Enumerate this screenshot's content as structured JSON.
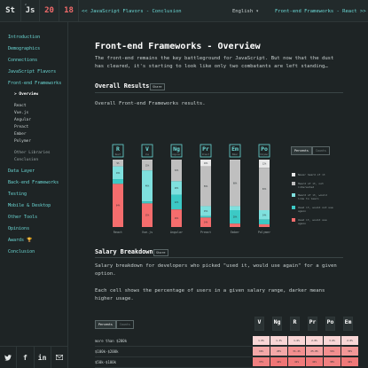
{
  "topbar": {
    "logo": [
      "St",
      "Js",
      "20",
      "18"
    ],
    "logo_js_sup": "2",
    "prev_link": "<< JavaScript Flavors - Conclusion",
    "language": "English",
    "next_link": "Front-end Frameworks - React >>"
  },
  "sidebar": {
    "items": [
      {
        "label": "Introduction"
      },
      {
        "label": "Demographics"
      },
      {
        "label": "Connections"
      },
      {
        "label": "JavaScript Flavors"
      },
      {
        "label": "Front-end Frameworks"
      }
    ],
    "active_sub": "> Overview",
    "subs": [
      "React",
      "Vue.js",
      "Angular",
      "Preact",
      "Ember",
      "Polymer"
    ],
    "subs2": [
      "Other Libraries",
      "Conclusion"
    ],
    "items2": [
      "Data Layer",
      "Back-end Frameworks",
      "Testing",
      "Mobile & Desktop",
      "Other Tools",
      "Opinions",
      "Awards 🏆",
      "Conclusion"
    ]
  },
  "share_icons": [
    "twitter-icon",
    "facebook-icon",
    "linkedin-icon",
    "email-icon"
  ],
  "main": {
    "title": "Front-end Frameworks - Overview",
    "intro": "The front-end remains the key battleground for JavaScript. But now that the dust has cleared, it's starting to look like only two combatants are left standing…",
    "overall": {
      "heading": "Overall Results",
      "share": "Share",
      "description": "Overall Front-end Frameworks results.",
      "toggle": [
        "Percents",
        "Counts"
      ]
    },
    "salary": {
      "heading": "Salary Breakdown",
      "share": "Share",
      "p1": "Salary breakdown for developers who picked \"used it, would use again\" for a given option.",
      "p2": "Each cell shows the percentage of users in a given salary range, darker means higher usage.",
      "toggle": [
        "Percents",
        "Counts"
      ]
    }
  },
  "chart_data": {
    "type": "bar",
    "categories": [
      "React",
      "Vue.js",
      "Angular",
      "Preact",
      "Ember",
      "Polymer"
    ],
    "badges": [
      "R",
      "V",
      "Ng",
      "Pr",
      "Em",
      "Po"
    ],
    "badge_subs": [
      "React",
      "Vue",
      "Angular",
      "Preact",
      "Ember",
      "Polymer"
    ],
    "legend": [
      {
        "label": "Never heard of it",
        "color": "#e8e8e8"
      },
      {
        "label": "Heard of it, not interested",
        "color": "#bfbfbf"
      },
      {
        "label": "Heard of it, would like to learn",
        "color": "#7fe0de"
      },
      {
        "label": "Used it, would not use again",
        "color": "#3cc9c5"
      },
      {
        "label": "Used it, would use again",
        "color": "#f56d6d"
      }
    ],
    "series": [
      {
        "values": [
          1,
          1,
          0,
          10,
          1,
          12
        ]
      },
      {
        "values": [
          9,
          15,
          32,
          59,
          68,
          63
        ]
      },
      {
        "values": [
          19,
          46,
          20,
          15,
          6,
          14
        ]
      },
      {
        "values": [
          7,
          3,
          22,
          2,
          20,
          7
        ]
      },
      {
        "values": [
          64,
          35,
          26,
          14,
          5,
          4
        ]
      }
    ],
    "salary_ranges": [
      "more than $200k",
      "$100k-$200k",
      "$50k-$100k"
    ],
    "salary_badges": [
      "V",
      "Ng",
      "R",
      "Pr",
      "Po",
      "Em"
    ],
    "salary_cells": [
      [
        "1.0%",
        "1.3%",
        "1.6%",
        "2.0%",
        "3.6%",
        "2.0%"
      ],
      [
        "19%",
        "20%",
        "31.2%",
        "25.8%",
        "31%",
        "30%"
      ],
      [
        "37%",
        "44%",
        "41%",
        "42%",
        "38%",
        "42%"
      ]
    ]
  }
}
